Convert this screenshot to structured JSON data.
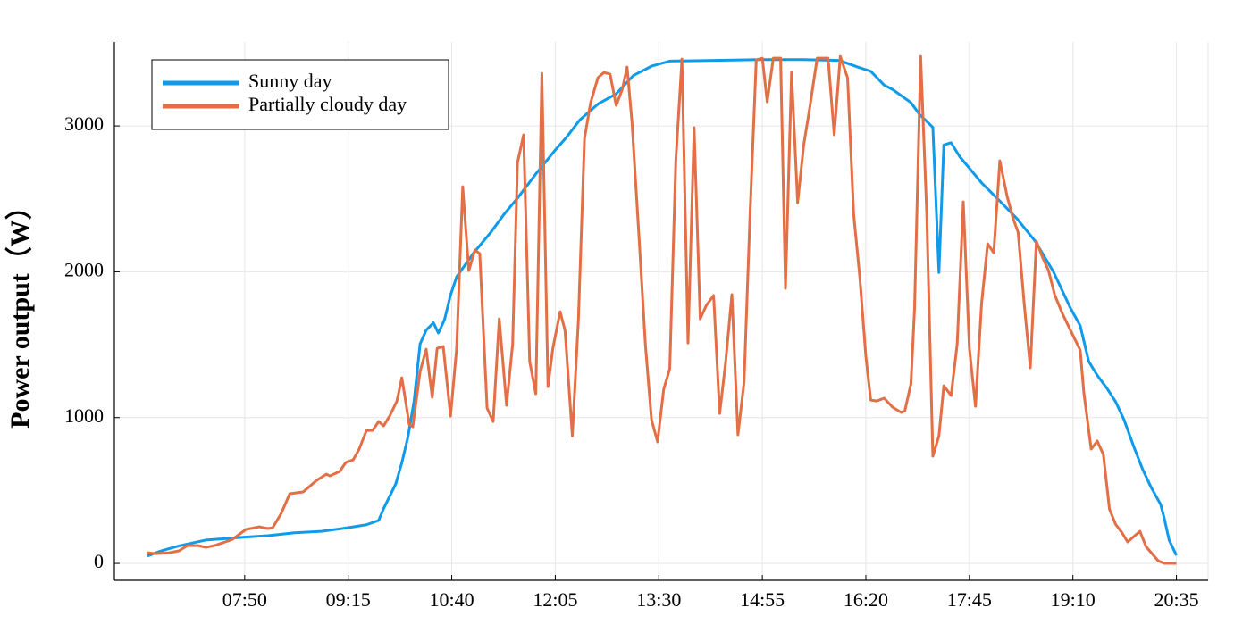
{
  "chart_data": {
    "type": "line",
    "ylabel": "Power output（W）",
    "xlim": [
      "06:03",
      "21:01"
    ],
    "xticks": [
      "07:50",
      "09:15",
      "10:40",
      "12:05",
      "13:30",
      "14:55",
      "16:20",
      "17:45",
      "19:10",
      "20:35"
    ],
    "ylim": [
      -116,
      3576
    ],
    "yticks": [
      0,
      1000,
      2000,
      3000
    ],
    "grid": true,
    "legend": "upper left",
    "series": [
      {
        "name": "Sunny day",
        "color": "#0f9aea",
        "x": [
          "06:30",
          "06:41",
          "06:56",
          "07:18",
          "07:50",
          "08:09",
          "08:31",
          "08:53",
          "09:15",
          "09:30",
          "09:40",
          "09:44",
          "09:54",
          "09:59",
          "10:04",
          "10:09",
          "10:14",
          "10:19",
          "10:25",
          "10:29",
          "10:34",
          "10:39",
          "10:44",
          "10:58",
          "11:12",
          "11:23",
          "11:34",
          "11:49",
          "12:04",
          "12:14",
          "12:25",
          "12:40",
          "12:55",
          "13:09",
          "13:24",
          "13:39",
          "14:15",
          "14:53",
          "15:29",
          "15:58",
          "16:13",
          "16:24",
          "16:35",
          "16:42",
          "16:57",
          "17:04",
          "17:15",
          "17:20",
          "17:24",
          "17:30",
          "17:37",
          "17:55",
          "18:10",
          "18:24",
          "18:39",
          "18:54",
          "19:08",
          "19:16",
          "19:23",
          "19:30",
          "19:38",
          "19:45",
          "19:52",
          "20:00",
          "20:07",
          "20:14",
          "20:22",
          "20:25",
          "20:29",
          "20:35"
        ],
        "values": [
          50,
          85,
          120,
          160,
          180,
          190,
          210,
          220,
          245,
          265,
          295,
          375,
          545,
          690,
          865,
          1110,
          1505,
          1600,
          1650,
          1580,
          1670,
          1840,
          1965,
          2130,
          2270,
          2395,
          2505,
          2670,
          2825,
          2920,
          3040,
          3150,
          3220,
          3345,
          3410,
          3445,
          3450,
          3455,
          3455,
          3450,
          3405,
          3375,
          3280,
          3250,
          3160,
          3080,
          2990,
          1995,
          2870,
          2885,
          2790,
          2610,
          2485,
          2365,
          2210,
          2000,
          1750,
          1630,
          1385,
          1290,
          1200,
          1110,
          985,
          800,
          650,
          525,
          405,
          310,
          160,
          55
        ]
      },
      {
        "name": "Partially cloudy day",
        "color": "#e26f46",
        "x": [
          "06:30",
          "06:37",
          "06:48",
          "06:56",
          "07:03",
          "07:12",
          "07:18",
          "07:25",
          "07:40",
          "07:51",
          "08:02",
          "08:09",
          "08:13",
          "08:20",
          "08:27",
          "08:38",
          "08:49",
          "08:57",
          "09:00",
          "09:08",
          "09:13",
          "09:19",
          "09:24",
          "09:30",
          "09:35",
          "09:40",
          "09:44",
          "09:49",
          "09:55",
          "09:59",
          "10:02",
          "10:05",
          "10:08",
          "10:14",
          "10:19",
          "10:24",
          "10:28",
          "10:33",
          "10:39",
          "10:44",
          "10:49",
          "10:54",
          "10:59",
          "11:03",
          "11:09",
          "11:14",
          "11:19",
          "11:25",
          "11:30",
          "11:34",
          "11:39",
          "11:44",
          "11:49",
          "11:54",
          "11:59",
          "12:03",
          "12:09",
          "12:13",
          "12:19",
          "12:24",
          "12:29",
          "12:34",
          "12:40",
          "12:45",
          "12:50",
          "12:55",
          "13:00",
          "13:04",
          "13:08",
          "13:14",
          "13:19",
          "13:24",
          "13:29",
          "13:34",
          "13:39",
          "13:44",
          "13:49",
          "13:54",
          "13:59",
          "14:04",
          "14:09",
          "14:15",
          "14:20",
          "14:25",
          "14:30",
          "14:35",
          "14:40",
          "14:45",
          "14:50",
          "14:55",
          "14:59",
          "15:04",
          "15:10",
          "15:14",
          "15:19",
          "15:24",
          "15:29",
          "15:34",
          "15:40",
          "15:49",
          "15:54",
          "15:59",
          "16:05",
          "16:10",
          "16:15",
          "16:20",
          "16:24",
          "16:29",
          "16:35",
          "16:42",
          "16:49",
          "16:52",
          "16:57",
          "17:00",
          "17:05",
          "17:10",
          "17:15",
          "17:20",
          "17:24",
          "17:30",
          "17:35",
          "17:40",
          "17:45",
          "17:50",
          "17:55",
          "18:00",
          "18:05",
          "18:10",
          "18:16",
          "18:21",
          "18:25",
          "18:30",
          "18:35",
          "18:40",
          "18:45",
          "18:50",
          "18:55",
          "19:01",
          "19:08",
          "19:16",
          "19:19",
          "19:25",
          "19:30",
          "19:35",
          "19:40",
          "19:45",
          "19:50",
          "19:55",
          "20:00",
          "20:05",
          "20:10",
          "20:15",
          "20:20",
          "20:25",
          "20:35"
        ],
        "values": [
          73,
          67,
          73,
          86,
          122,
          122,
          110,
          122,
          165,
          233,
          251,
          239,
          245,
          343,
          478,
          490,
          569,
          612,
          600,
          631,
          692,
          710,
          784,
          912,
          912,
          973,
          943,
          1010,
          1114,
          1273,
          1120,
          955,
          937,
          1316,
          1469,
          1139,
          1475,
          1488,
          1010,
          1475,
          2583,
          2008,
          2149,
          2124,
          1065,
          973,
          1677,
          1084,
          1506,
          2749,
          2939,
          1384,
          1163,
          3361,
          1212,
          1475,
          1726,
          1598,
          875,
          1671,
          2914,
          3159,
          3330,
          3367,
          3355,
          3141,
          3251,
          3404,
          3024,
          2204,
          1500,
          986,
          833,
          1194,
          1335,
          2767,
          3459,
          1512,
          2988,
          1677,
          1769,
          1837,
          1028,
          1390,
          1843,
          882,
          1243,
          2412,
          3453,
          3465,
          3165,
          3465,
          3465,
          1886,
          3367,
          2473,
          2871,
          3128,
          3465,
          3465,
          2939,
          3477,
          3330,
          2394,
          1965,
          1420,
          1120,
          1114,
          1133,
          1071,
          1035,
          1047,
          1231,
          1751,
          3477,
          2394,
          735,
          875,
          1218,
          1151,
          1506,
          2479,
          1475,
          1077,
          1781,
          2192,
          2130,
          2761,
          2516,
          2363,
          2271,
          1781,
          1341,
          2210,
          2100,
          2008,
          1843,
          1720,
          1598,
          1463,
          1169,
          784,
          839,
          747,
          373,
          269,
          214,
          147,
          184,
          220,
          116,
          67,
          18,
          0,
          0
        ]
      }
    ]
  }
}
